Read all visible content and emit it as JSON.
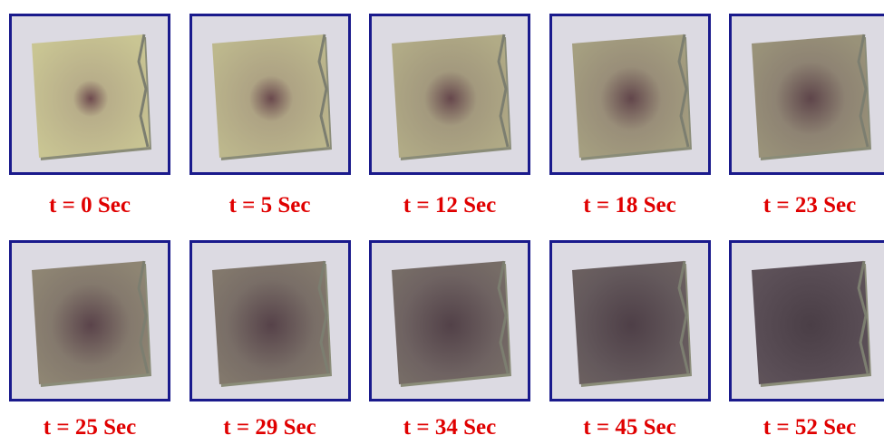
{
  "panels": [
    {
      "label": "t = 0 Sec"
    },
    {
      "label": "t = 5 Sec"
    },
    {
      "label": "t = 12 Sec"
    },
    {
      "label": "t = 18 Sec"
    },
    {
      "label": "t = 23 Sec"
    },
    {
      "label": "t = 25 Sec"
    },
    {
      "label": "t = 29 Sec"
    },
    {
      "label": "t = 34 Sec"
    },
    {
      "label": "t = 45 Sec"
    },
    {
      "label": "t = 52 Sec"
    }
  ]
}
